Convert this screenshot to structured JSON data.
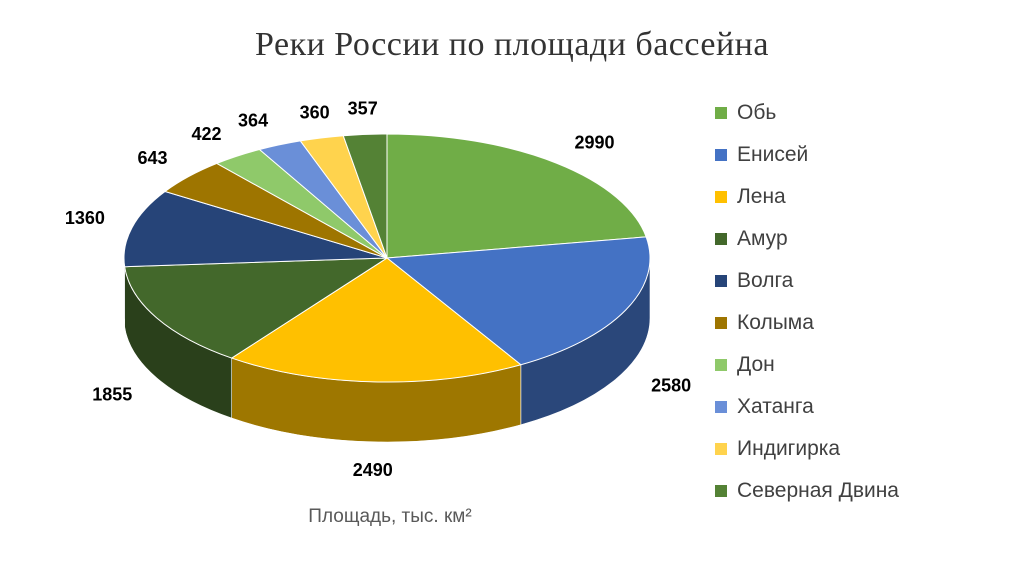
{
  "chart_data": {
    "type": "pie",
    "title": "Реки России по площади бассейна",
    "xlabel": "Площадь, тыс. км²",
    "legend_position": "right",
    "three_d": true,
    "categories": [
      "Обь",
      "Енисей",
      "Лена",
      "Амур",
      "Волга",
      "Колыма",
      "Дон",
      "Хатанга",
      "Индигирка",
      "Северная Двина"
    ],
    "values": [
      2990,
      2580,
      2490,
      1855,
      1360,
      643,
      422,
      364,
      360,
      357
    ],
    "data_labels": [
      "2990",
      "2580",
      "2490",
      "1855",
      "1360",
      "643",
      "422",
      "364",
      "360",
      "357"
    ],
    "colors": [
      "#70AD47",
      "#4472C4",
      "#FFC000",
      "#43682B",
      "#264478",
      "#9E7500",
      "#8FC96A",
      "#6A8FD8",
      "#FFD34D",
      "#548235"
    ]
  }
}
